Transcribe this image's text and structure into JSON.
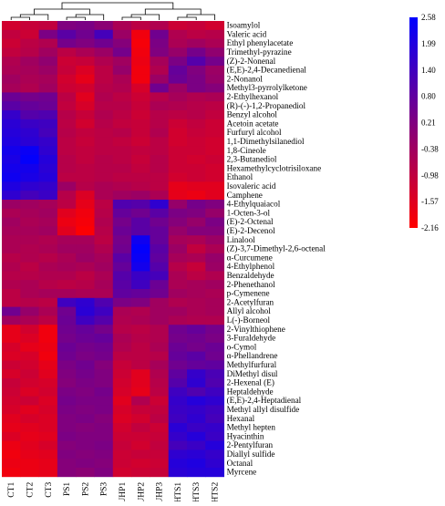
{
  "chart_data": {
    "type": "heatmap",
    "title": "",
    "xlabel": "",
    "ylabel": "",
    "columns": [
      "CT1",
      "CT2",
      "CT3",
      "PS1",
      "PS2",
      "PS3",
      "UHP1",
      "UHP2",
      "UHP3",
      "HTS1",
      "HTS3",
      "HTS2"
    ],
    "rows": [
      "Isoamylol",
      "Valeric acid",
      "Ethyl phenylacetate",
      "Trimethyl-pyrazine",
      "(Z)-2-Nonenal",
      "(E,E)-2,4-Decanedienal",
      "2-Nonanol",
      "Methyl3-pyrrolylketone",
      "2-Ethylhexanol",
      "(R)-(-)-1,2-Propanediol",
      "Benzyl alcohol",
      "Acetoin acetate",
      "Furfuryl alcohol",
      "1,1-Dimethylsilanediol",
      "1,8-Cineole",
      "2,3-Butanediol",
      "Hexamethylcyclotrisiloxane",
      "Ethanol",
      "Isovaleric acid",
      "Camphene",
      "4-Ethylquaiacol",
      "1-Octen-3-ol",
      "(E)-2-Octenal",
      "(E)-2-Decenol",
      "Linalool",
      "(Z)-3,7-Dimethyl-2,6-octenal",
      "α-Curcumene",
      "4-Ethylphenol",
      "Benzaldehyde",
      "2-Phenethanol",
      "p-Cymenene",
      "2-Acetylfuran",
      "Allyl alcohol",
      "L(-)-Borneol",
      "2-Vinylthiophene",
      "3-Furaldehyde",
      "o-Cymol",
      "α-Phellandrene",
      "Methylfurfural",
      "DiMethyl disul",
      "2-Hexenal (E)",
      "Heptaldehyde",
      "(E,E)-2,4-Heptadienal",
      "Methyl allyl disulfide",
      "Hexanal",
      "Methyl hepten",
      "Hyacinthin",
      "2-Pentylfuran",
      "Diallyl sulfide",
      "Octanal",
      "Myrcene"
    ],
    "values": [
      [
        -1.3,
        -1.1,
        -1.0,
        0.2,
        0.3,
        0.0,
        -0.6,
        -0.9,
        -0.7,
        -1.2,
        -1.1,
        -1.3
      ],
      [
        -1.0,
        -1.2,
        0.3,
        0.9,
        0.5,
        1.3,
        -0.3,
        -1.9,
        0.5,
        -0.7,
        -0.9,
        -0.8
      ],
      [
        -1.2,
        -0.9,
        -0.7,
        0.4,
        0.2,
        0.5,
        0.1,
        -2.0,
        0.3,
        -0.6,
        -0.4,
        -0.6
      ],
      [
        -1.0,
        -0.8,
        -0.4,
        -0.9,
        -0.6,
        -0.3,
        0.4,
        -1.9,
        0.2,
        -0.2,
        0.4,
        -0.1
      ],
      [
        -0.7,
        -0.4,
        -0.1,
        -1.2,
        -1.1,
        -0.7,
        -0.4,
        -1.8,
        -0.5,
        0.3,
        1.0,
        0.4
      ],
      [
        -0.6,
        -0.5,
        -0.3,
        -1.1,
        -1.5,
        -0.9,
        -0.2,
        -1.9,
        -0.7,
        0.7,
        0.2,
        -0.3
      ],
      [
        -0.4,
        -0.6,
        -0.5,
        -1.3,
        -1.7,
        -0.9,
        -0.6,
        -1.9,
        -0.3,
        0.6,
        0.3,
        -0.2
      ],
      [
        -0.5,
        -0.7,
        -0.4,
        -1.2,
        -1.3,
        -0.8,
        -0.7,
        -1.4,
        0.5,
        -0.3,
        0.3,
        0.1
      ],
      [
        0.6,
        0.4,
        0.5,
        -0.9,
        -1.6,
        -0.7,
        -0.9,
        -1.2,
        -0.8,
        -0.5,
        -0.7,
        -0.6
      ],
      [
        0.9,
        0.7,
        0.6,
        -1.0,
        -1.4,
        -0.8,
        -0.8,
        -1.1,
        -0.6,
        -0.7,
        -0.8,
        -0.9
      ],
      [
        1.6,
        1.0,
        1.1,
        -0.8,
        -1.1,
        -0.7,
        -0.9,
        -1.2,
        -0.8,
        -0.9,
        -0.8,
        -1.0
      ],
      [
        1.8,
        1.5,
        1.4,
        -0.9,
        -1.3,
        -0.8,
        -1.0,
        -1.1,
        -0.8,
        -1.2,
        -1.0,
        -1.2
      ],
      [
        1.9,
        1.7,
        1.3,
        -0.8,
        -1.0,
        -0.9,
        -0.8,
        -1.1,
        -0.7,
        -1.3,
        -1.1,
        -1.2
      ],
      [
        2.0,
        1.8,
        1.6,
        -0.9,
        -1.1,
        -0.9,
        -1.0,
        -1.2,
        -0.9,
        -1.3,
        -1.2,
        -1.3
      ],
      [
        2.2,
        2.4,
        1.7,
        -0.9,
        -1.0,
        -0.9,
        -0.9,
        -1.0,
        -0.9,
        -1.2,
        -1.2,
        -1.3
      ],
      [
        2.1,
        2.5,
        1.9,
        -0.8,
        -1.0,
        -0.8,
        -0.9,
        -1.1,
        -0.8,
        -1.2,
        -1.3,
        -1.2
      ],
      [
        2.2,
        2.2,
        1.8,
        -0.8,
        -0.9,
        -0.8,
        -0.8,
        -1.0,
        -0.8,
        -1.2,
        -1.2,
        -1.3
      ],
      [
        2.3,
        2.1,
        1.9,
        -0.9,
        -0.9,
        -0.8,
        -0.9,
        -0.9,
        -0.9,
        -1.3,
        -1.2,
        -1.3
      ],
      [
        2.0,
        1.7,
        1.6,
        -0.3,
        -0.8,
        -0.6,
        -0.7,
        -0.8,
        -0.9,
        -1.7,
        -1.6,
        -1.6
      ],
      [
        1.7,
        1.3,
        1.5,
        -0.8,
        -1.5,
        -0.6,
        -0.4,
        -0.3,
        -0.6,
        -1.7,
        -1.8,
        -1.6
      ],
      [
        -0.3,
        -0.4,
        -0.5,
        -0.9,
        -1.7,
        -0.9,
        1.1,
        1.0,
        1.7,
        -0.2,
        0.4,
        0.2
      ],
      [
        -0.6,
        -0.5,
        -0.4,
        -1.6,
        -1.9,
        -0.8,
        0.7,
        0.5,
        0.9,
        0.3,
        0.2,
        -0.2
      ],
      [
        -0.4,
        -0.6,
        -0.5,
        -1.8,
        -2.0,
        -0.7,
        0.4,
        0.9,
        0.5,
        0.1,
        -0.2,
        0.3
      ],
      [
        -0.5,
        -0.5,
        -0.4,
        -1.6,
        -2.1,
        -0.8,
        0.6,
        0.9,
        0.7,
        -0.2,
        0.1,
        0.1
      ],
      [
        -0.6,
        -0.6,
        -0.7,
        -0.5,
        -0.5,
        -0.9,
        0.4,
        2.3,
        0.7,
        -0.5,
        -0.6,
        -0.3
      ],
      [
        -0.6,
        -0.7,
        -0.6,
        -0.4,
        -0.4,
        -0.7,
        0.5,
        2.5,
        0.9,
        -0.3,
        -1.0,
        -0.6
      ],
      [
        -0.8,
        -0.7,
        -0.8,
        -0.6,
        -0.3,
        -0.5,
        0.9,
        2.4,
        0.8,
        -0.5,
        -0.6,
        -0.2
      ],
      [
        -0.7,
        -0.9,
        -0.6,
        -0.5,
        -0.6,
        -0.4,
        0.7,
        2.2,
        1.0,
        -0.8,
        -1.1,
        -0.3
      ],
      [
        -0.8,
        -0.8,
        -0.7,
        -0.7,
        -0.9,
        -0.6,
        1.0,
        1.5,
        1.3,
        -0.6,
        -0.9,
        -0.7
      ],
      [
        -0.7,
        -0.6,
        -0.8,
        -0.9,
        -0.8,
        -0.5,
        0.9,
        1.4,
        0.6,
        -0.6,
        -0.5,
        -0.4
      ],
      [
        -0.9,
        -0.6,
        -0.5,
        -0.5,
        -0.6,
        -0.6,
        0.8,
        0.7,
        0.5,
        -0.4,
        -0.5,
        -0.6
      ],
      [
        -0.9,
        -0.8,
        -0.9,
        1.4,
        1.7,
        1.1,
        0.3,
        0.2,
        -0.4,
        -0.7,
        -0.6,
        -0.5
      ],
      [
        0.5,
        -0.2,
        -0.6,
        0.5,
        1.8,
        1.4,
        -0.6,
        -0.7,
        -0.4,
        -0.4,
        -0.6,
        -0.5
      ],
      [
        -0.4,
        -0.6,
        -0.9,
        0.6,
        1.4,
        1.0,
        -0.7,
        -0.6,
        -0.4,
        -0.6,
        -0.7,
        -0.7
      ],
      [
        -1.7,
        -1.3,
        -1.9,
        0.5,
        0.7,
        0.4,
        -0.8,
        -0.9,
        -0.7,
        0.5,
        0.7,
        0.4
      ],
      [
        -1.7,
        -1.5,
        -1.9,
        0.4,
        0.6,
        0.7,
        -0.6,
        -0.8,
        -0.7,
        0.4,
        0.5,
        0.3
      ],
      [
        -1.4,
        -1.7,
        -1.8,
        0.6,
        0.4,
        0.5,
        -0.7,
        -0.9,
        -0.6,
        0.6,
        0.4,
        0.6
      ],
      [
        -1.5,
        -1.4,
        -1.9,
        0.5,
        0.3,
        0.4,
        -0.9,
        -0.9,
        -0.8,
        0.7,
        0.9,
        0.5
      ],
      [
        -1.2,
        -1.3,
        -1.7,
        0.3,
        0.5,
        0.1,
        -1.1,
        -0.9,
        -0.5,
        0.5,
        0.7,
        0.8
      ],
      [
        -1.4,
        -1.2,
        -1.6,
        0.2,
        0.4,
        0.2,
        -1.2,
        -1.6,
        -0.7,
        0.8,
        1.6,
        1.2
      ],
      [
        -1.1,
        -1.3,
        -1.4,
        0.1,
        0.3,
        0.2,
        -1.3,
        -1.6,
        -0.8,
        1.0,
        1.7,
        1.1
      ],
      [
        -1.2,
        -1.5,
        -1.3,
        0.3,
        0.2,
        0.4,
        -1.4,
        -1.7,
        -0.9,
        1.4,
        1.1,
        1.4
      ],
      [
        -1.3,
        -1.2,
        -1.5,
        0.4,
        0.3,
        0.3,
        -1.6,
        -0.7,
        -1.2,
        1.6,
        1.9,
        1.7
      ],
      [
        -1.4,
        -1.6,
        -1.4,
        0.3,
        0.2,
        0.3,
        -1.4,
        -1.1,
        -1.0,
        1.5,
        1.6,
        1.4
      ],
      [
        -1.6,
        -1.4,
        -1.5,
        0.2,
        0.3,
        0.1,
        -1.5,
        -1.3,
        -0.9,
        1.4,
        1.7,
        1.3
      ],
      [
        -1.7,
        -1.6,
        -1.5,
        0.2,
        0.1,
        0.2,
        -1.3,
        -1.0,
        -1.2,
        1.8,
        1.5,
        1.6
      ],
      [
        -1.5,
        -1.7,
        -1.6,
        0.3,
        0.2,
        0.2,
        -1.2,
        -1.2,
        -1.1,
        1.6,
        1.9,
        1.5
      ],
      [
        -1.8,
        -1.6,
        -1.4,
        0.1,
        0.2,
        0.3,
        -1.1,
        -1.3,
        -1.0,
        1.3,
        1.5,
        1.9
      ],
      [
        -1.9,
        -1.7,
        -1.6,
        0.2,
        0.1,
        0.2,
        -1.2,
        -1.1,
        -1.1,
        1.7,
        1.8,
        1.6
      ],
      [
        -1.8,
        -1.8,
        -1.7,
        0.1,
        0.2,
        0.1,
        -1.2,
        -1.3,
        -1.2,
        1.9,
        2.0,
        1.7
      ],
      [
        -1.9,
        -1.8,
        -1.7,
        0.1,
        0.0,
        0.2,
        -1.3,
        -1.2,
        -1.1,
        1.8,
        1.9,
        1.9
      ]
    ],
    "colorbar": {
      "ticks": [
        "2.58",
        "1.99",
        "1.40",
        "0.80",
        "0.21",
        "-0.38",
        "-0.98",
        "-1.57",
        "-2.16"
      ],
      "min": -2.16,
      "max": 2.58,
      "colors": [
        "#ff0000",
        "#0000ff"
      ]
    },
    "dendrogram": {
      "column_clusters": [
        [
          "CT1",
          "CT2",
          "CT3"
        ],
        [
          "PS1",
          "PS2",
          "PS3"
        ],
        [
          "UHP1",
          "UHP2",
          "UHP3"
        ],
        [
          "HTS1",
          "HTS3",
          "HTS2"
        ]
      ]
    }
  }
}
